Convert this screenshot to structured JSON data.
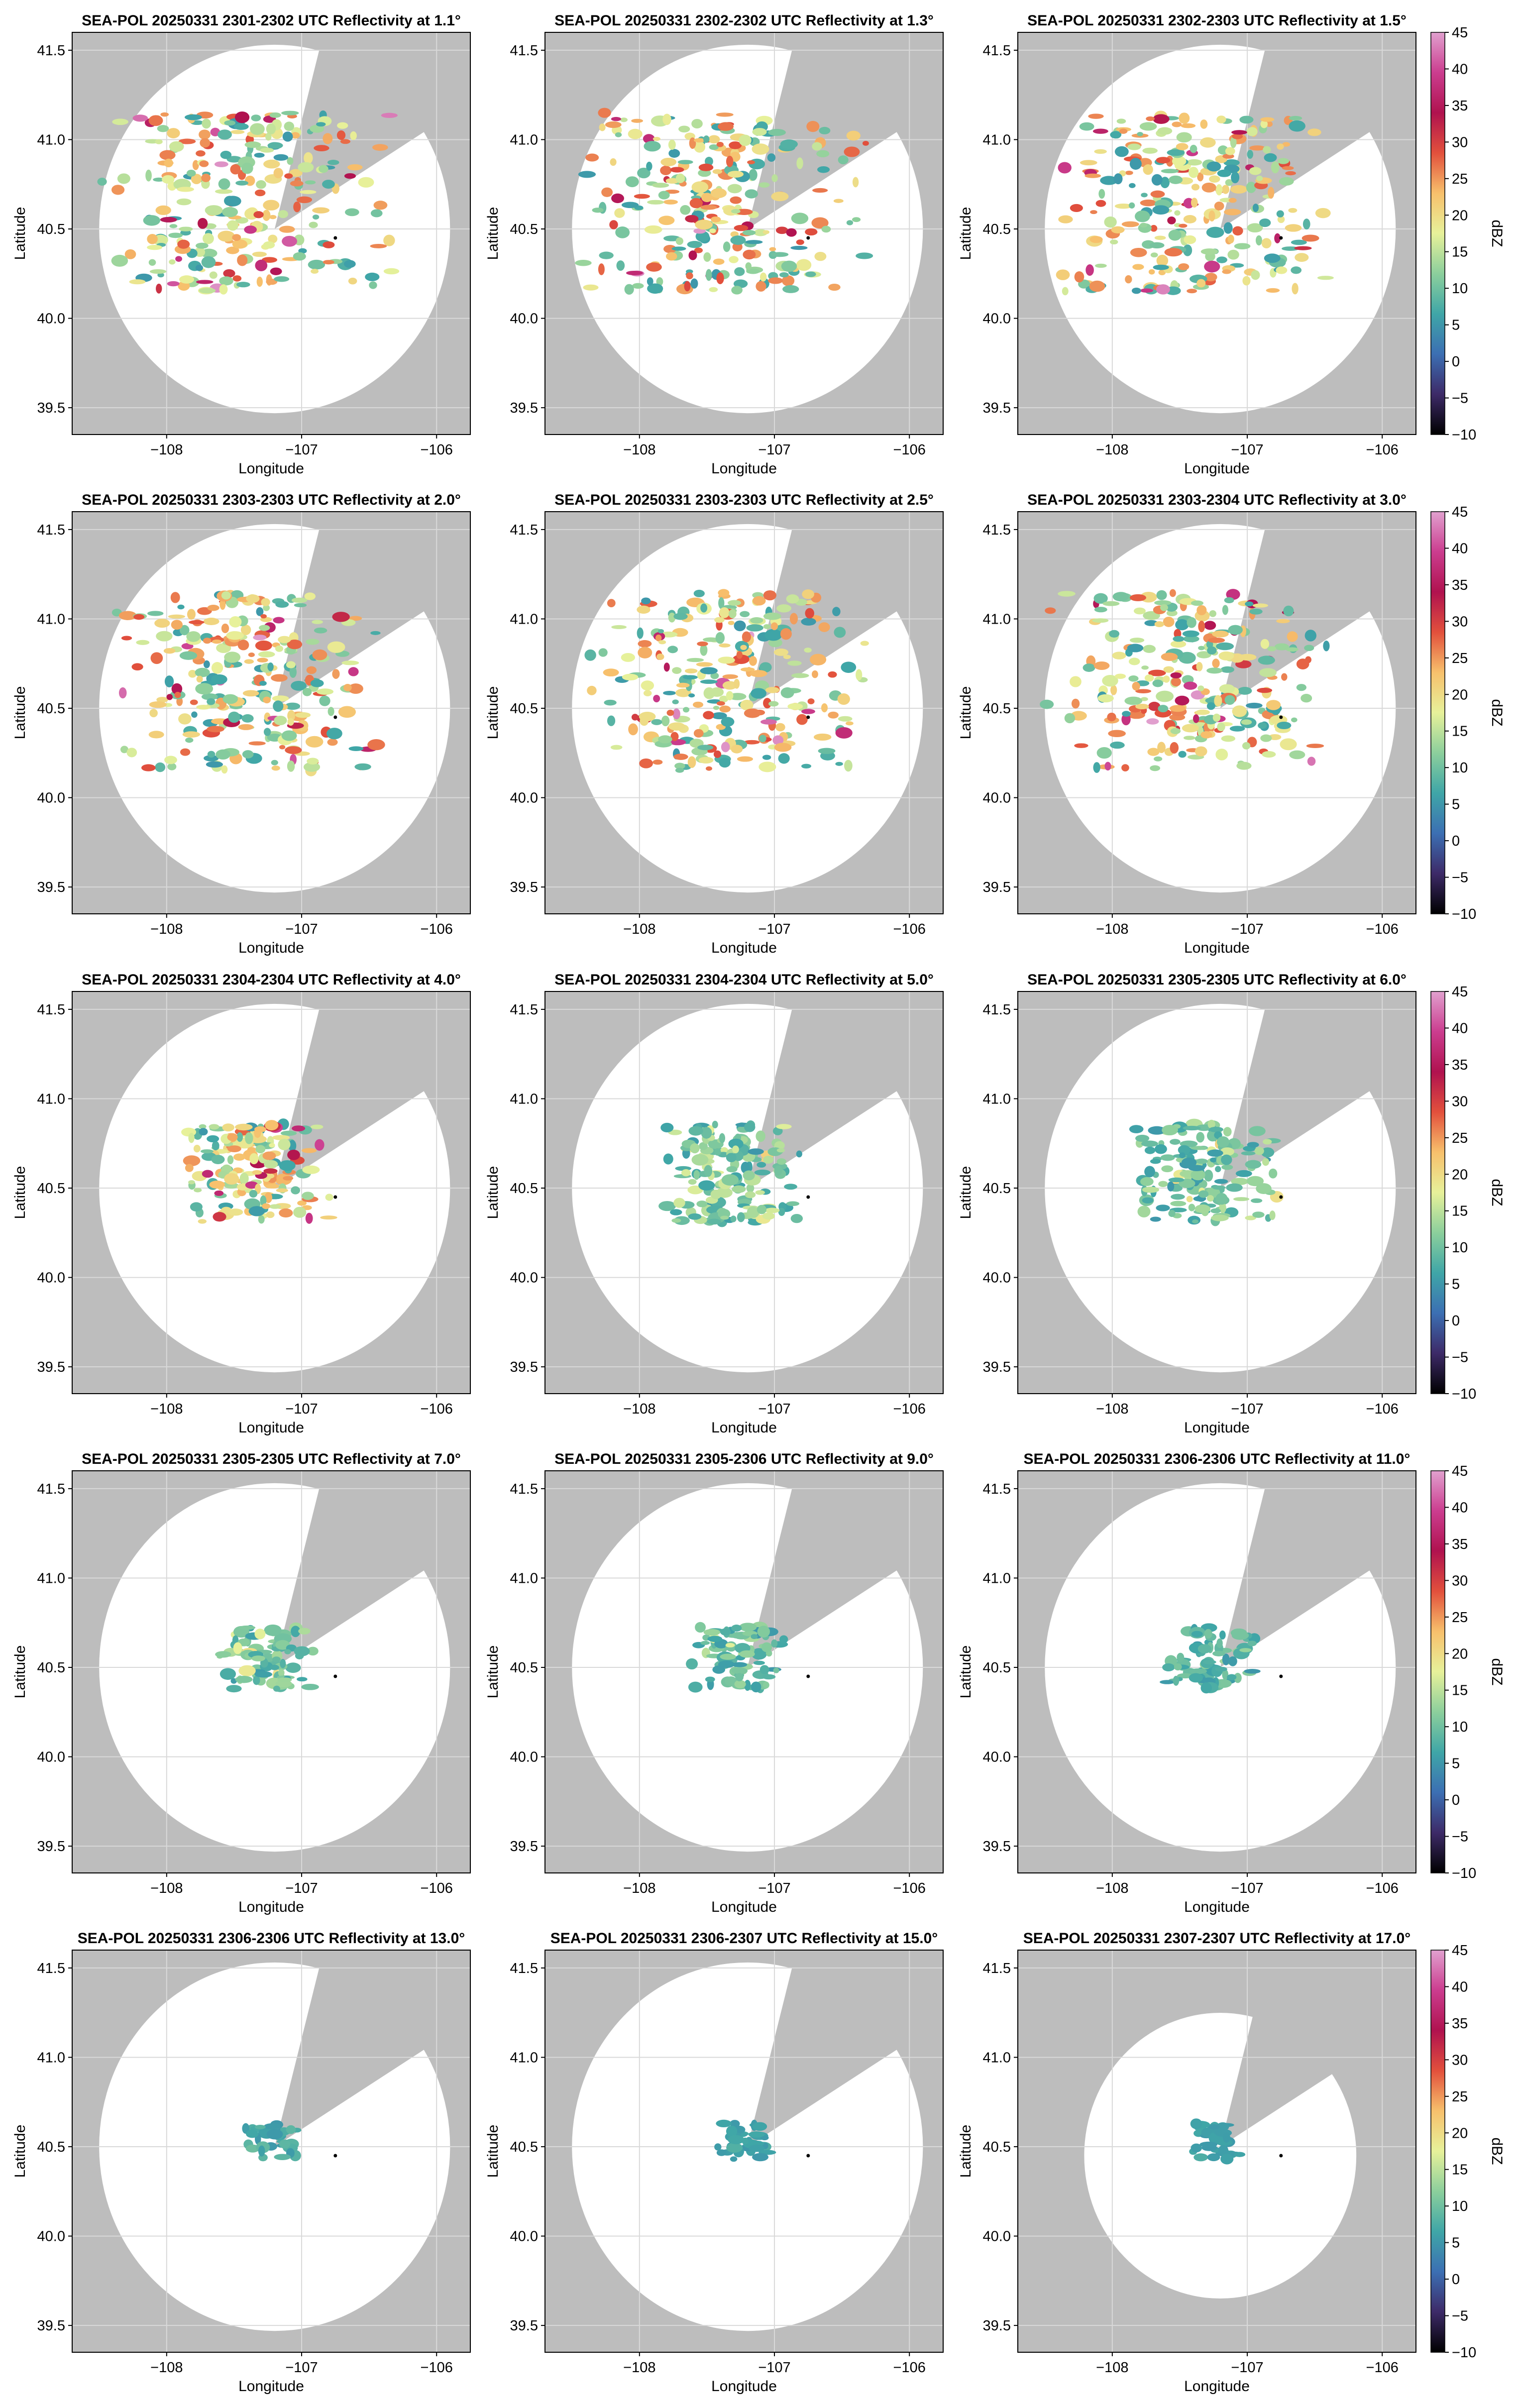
{
  "figure": {
    "background_color": "#bdbdbd",
    "coverage_color": "#ffffff",
    "grid_color": "#d9d9d9"
  },
  "colorbar": {
    "label": "dBZ",
    "ticks": [
      45,
      40,
      35,
      30,
      25,
      20,
      15,
      10,
      5,
      0,
      -5,
      -10
    ],
    "tick_labels": [
      "45",
      "40",
      "35",
      "30",
      "25",
      "20",
      "15",
      "10",
      "5",
      "0",
      "−5",
      "−10"
    ],
    "colormap": "spectral-like (black → purple → blue → teal → green → yellow → orange → red → magenta → light purple)",
    "colors": [
      "#000000",
      "#3d2a68",
      "#3c6fb3",
      "#3fa6a7",
      "#8ccf9c",
      "#e7f19a",
      "#f7c06c",
      "#e2503c",
      "#b0124f",
      "#cb3d8f",
      "#e1a1cf"
    ]
  },
  "chart_data": [
    {
      "type": "heatmap",
      "title": "SEA-POL 20250331 2301-2302 UTC Reflectivity at 1.1°",
      "xlabel": "Longitude",
      "ylabel": "Latitude",
      "xticks": [
        "−108",
        "−107",
        "−106"
      ],
      "yticks": [
        "39.5",
        "40.0",
        "40.5",
        "41.0",
        "41.5"
      ],
      "xlim": [
        -108.7,
        -105.75
      ],
      "ylim": [
        39.35,
        41.6
      ],
      "grid": true,
      "colorbar": false,
      "elevation_deg": 1.1,
      "radar_location": [
        -106.75,
        40.45
      ],
      "max_reflectivity_dbz": 45
    },
    {
      "type": "heatmap",
      "title": "SEA-POL 20250331 2302-2302 UTC Reflectivity at 1.3°",
      "xlabel": "Longitude",
      "ylabel": "Latitude",
      "xticks": [
        "−108",
        "−107",
        "−106"
      ],
      "yticks": [
        "39.5",
        "40.0",
        "40.5",
        "41.0",
        "41.5"
      ],
      "xlim": [
        -108.7,
        -105.75
      ],
      "ylim": [
        39.35,
        41.6
      ],
      "grid": true,
      "colorbar": false,
      "elevation_deg": 1.3,
      "radar_location": [
        -106.75,
        40.45
      ],
      "max_reflectivity_dbz": 45
    },
    {
      "type": "heatmap",
      "title": "SEA-POL 20250331 2302-2303 UTC Reflectivity at 1.5°",
      "xlabel": "Longitude",
      "ylabel": "Latitude",
      "xticks": [
        "−108",
        "−107",
        "−106"
      ],
      "yticks": [
        "39.5",
        "40.0",
        "40.5",
        "41.0",
        "41.5"
      ],
      "xlim": [
        -108.7,
        -105.75
      ],
      "ylim": [
        39.35,
        41.6
      ],
      "grid": true,
      "colorbar": true,
      "elevation_deg": 1.5,
      "radar_location": [
        -106.75,
        40.45
      ],
      "max_reflectivity_dbz": 45
    },
    {
      "type": "heatmap",
      "title": "SEA-POL 20250331 2303-2303 UTC Reflectivity at 2.0°",
      "xlabel": "Longitude",
      "ylabel": "Latitude",
      "xticks": [
        "−108",
        "−107",
        "−106"
      ],
      "yticks": [
        "39.5",
        "40.0",
        "40.5",
        "41.0",
        "41.5"
      ],
      "xlim": [
        -108.7,
        -105.75
      ],
      "ylim": [
        39.35,
        41.6
      ],
      "grid": true,
      "colorbar": false,
      "elevation_deg": 2.0,
      "radar_location": [
        -106.75,
        40.45
      ],
      "max_reflectivity_dbz": 45
    },
    {
      "type": "heatmap",
      "title": "SEA-POL 20250331 2303-2303 UTC Reflectivity at 2.5°",
      "xlabel": "Longitude",
      "ylabel": "Latitude",
      "xticks": [
        "−108",
        "−107",
        "−106"
      ],
      "yticks": [
        "39.5",
        "40.0",
        "40.5",
        "41.0",
        "41.5"
      ],
      "xlim": [
        -108.7,
        -105.75
      ],
      "ylim": [
        39.35,
        41.6
      ],
      "grid": true,
      "colorbar": false,
      "elevation_deg": 2.5,
      "radar_location": [
        -106.75,
        40.45
      ],
      "max_reflectivity_dbz": 45
    },
    {
      "type": "heatmap",
      "title": "SEA-POL 20250331 2303-2304 UTC Reflectivity at 3.0°",
      "xlabel": "Longitude",
      "ylabel": "Latitude",
      "xticks": [
        "−108",
        "−107",
        "−106"
      ],
      "yticks": [
        "39.5",
        "40.0",
        "40.5",
        "41.0",
        "41.5"
      ],
      "xlim": [
        -108.7,
        -105.75
      ],
      "ylim": [
        39.35,
        41.6
      ],
      "grid": true,
      "colorbar": true,
      "elevation_deg": 3.0,
      "radar_location": [
        -106.75,
        40.45
      ],
      "max_reflectivity_dbz": 45
    },
    {
      "type": "heatmap",
      "title": "SEA-POL 20250331 2304-2304 UTC Reflectivity at 4.0°",
      "xlabel": "Longitude",
      "ylabel": "Latitude",
      "xticks": [
        "−108",
        "−107",
        "−106"
      ],
      "yticks": [
        "39.5",
        "40.0",
        "40.5",
        "41.0",
        "41.5"
      ],
      "xlim": [
        -108.7,
        -105.75
      ],
      "ylim": [
        39.35,
        41.6
      ],
      "grid": true,
      "colorbar": false,
      "elevation_deg": 4.0,
      "radar_location": [
        -106.75,
        40.45
      ],
      "max_reflectivity_dbz": 40
    },
    {
      "type": "heatmap",
      "title": "SEA-POL 20250331 2304-2304 UTC Reflectivity at 5.0°",
      "xlabel": "Longitude",
      "ylabel": "Latitude",
      "xticks": [
        "−108",
        "−107",
        "−106"
      ],
      "yticks": [
        "39.5",
        "40.0",
        "40.5",
        "41.0",
        "41.5"
      ],
      "xlim": [
        -108.7,
        -105.75
      ],
      "ylim": [
        39.35,
        41.6
      ],
      "grid": true,
      "colorbar": false,
      "elevation_deg": 5.0,
      "radar_location": [
        -106.75,
        40.45
      ],
      "max_reflectivity_dbz": 25
    },
    {
      "type": "heatmap",
      "title": "SEA-POL 20250331 2305-2305 UTC Reflectivity at 6.0°",
      "xlabel": "Longitude",
      "ylabel": "Latitude",
      "xticks": [
        "−108",
        "−107",
        "−106"
      ],
      "yticks": [
        "39.5",
        "40.0",
        "40.5",
        "41.0",
        "41.5"
      ],
      "xlim": [
        -108.7,
        -105.75
      ],
      "ylim": [
        39.35,
        41.6
      ],
      "grid": true,
      "colorbar": true,
      "elevation_deg": 6.0,
      "radar_location": [
        -106.75,
        40.45
      ],
      "max_reflectivity_dbz": 22
    },
    {
      "type": "heatmap",
      "title": "SEA-POL 20250331 2305-2305 UTC Reflectivity at 7.0°",
      "xlabel": "Longitude",
      "ylabel": "Latitude",
      "xticks": [
        "−108",
        "−107",
        "−106"
      ],
      "yticks": [
        "39.5",
        "40.0",
        "40.5",
        "41.0",
        "41.5"
      ],
      "xlim": [
        -108.7,
        -105.75
      ],
      "ylim": [
        39.35,
        41.6
      ],
      "grid": true,
      "colorbar": false,
      "elevation_deg": 7.0,
      "radar_location": [
        -106.75,
        40.45
      ],
      "max_reflectivity_dbz": 20
    },
    {
      "type": "heatmap",
      "title": "SEA-POL 20250331 2305-2306 UTC Reflectivity at 9.0°",
      "xlabel": "Longitude",
      "ylabel": "Latitude",
      "xticks": [
        "−108",
        "−107",
        "−106"
      ],
      "yticks": [
        "39.5",
        "40.0",
        "40.5",
        "41.0",
        "41.5"
      ],
      "xlim": [
        -108.7,
        -105.75
      ],
      "ylim": [
        39.35,
        41.6
      ],
      "grid": true,
      "colorbar": false,
      "elevation_deg": 9.0,
      "radar_location": [
        -106.75,
        40.45
      ],
      "max_reflectivity_dbz": 18
    },
    {
      "type": "heatmap",
      "title": "SEA-POL 20250331 2306-2306 UTC Reflectivity at 11.0°",
      "xlabel": "Longitude",
      "ylabel": "Latitude",
      "xticks": [
        "−108",
        "−107",
        "−106"
      ],
      "yticks": [
        "39.5",
        "40.0",
        "40.5",
        "41.0",
        "41.5"
      ],
      "xlim": [
        -108.7,
        -105.75
      ],
      "ylim": [
        39.35,
        41.6
      ],
      "grid": true,
      "colorbar": true,
      "elevation_deg": 11.0,
      "radar_location": [
        -106.75,
        40.45
      ],
      "max_reflectivity_dbz": 15
    },
    {
      "type": "heatmap",
      "title": "SEA-POL 20250331 2306-2306 UTC Reflectivity at 13.0°",
      "xlabel": "Longitude",
      "ylabel": "Latitude",
      "xticks": [
        "−108",
        "−107",
        "−106"
      ],
      "yticks": [
        "39.5",
        "40.0",
        "40.5",
        "41.0",
        "41.5"
      ],
      "xlim": [
        -108.7,
        -105.75
      ],
      "ylim": [
        39.35,
        41.6
      ],
      "grid": true,
      "colorbar": false,
      "elevation_deg": 13.0,
      "radar_location": [
        -106.75,
        40.45
      ],
      "max_reflectivity_dbz": 12
    },
    {
      "type": "heatmap",
      "title": "SEA-POL 20250331 2306-2307 UTC Reflectivity at 15.0°",
      "xlabel": "Longitude",
      "ylabel": "Latitude",
      "xticks": [
        "−108",
        "−107",
        "−106"
      ],
      "yticks": [
        "39.5",
        "40.0",
        "40.5",
        "41.0",
        "41.5"
      ],
      "xlim": [
        -108.7,
        -105.75
      ],
      "ylim": [
        39.35,
        41.6
      ],
      "grid": true,
      "colorbar": false,
      "elevation_deg": 15.0,
      "radar_location": [
        -106.75,
        40.45
      ],
      "max_reflectivity_dbz": 8
    },
    {
      "type": "heatmap",
      "title": "SEA-POL 20250331 2307-2307 UTC Reflectivity at 17.0°",
      "xlabel": "Longitude",
      "ylabel": "Latitude",
      "xticks": [
        "−108",
        "−107",
        "−106"
      ],
      "yticks": [
        "39.5",
        "40.0",
        "40.5",
        "41.0",
        "41.5"
      ],
      "xlim": [
        -108.7,
        -105.75
      ],
      "ylim": [
        39.35,
        41.6
      ],
      "grid": true,
      "colorbar": true,
      "elevation_deg": 17.0,
      "radar_location": [
        -106.75,
        40.45
      ],
      "max_reflectivity_dbz": 8
    }
  ]
}
